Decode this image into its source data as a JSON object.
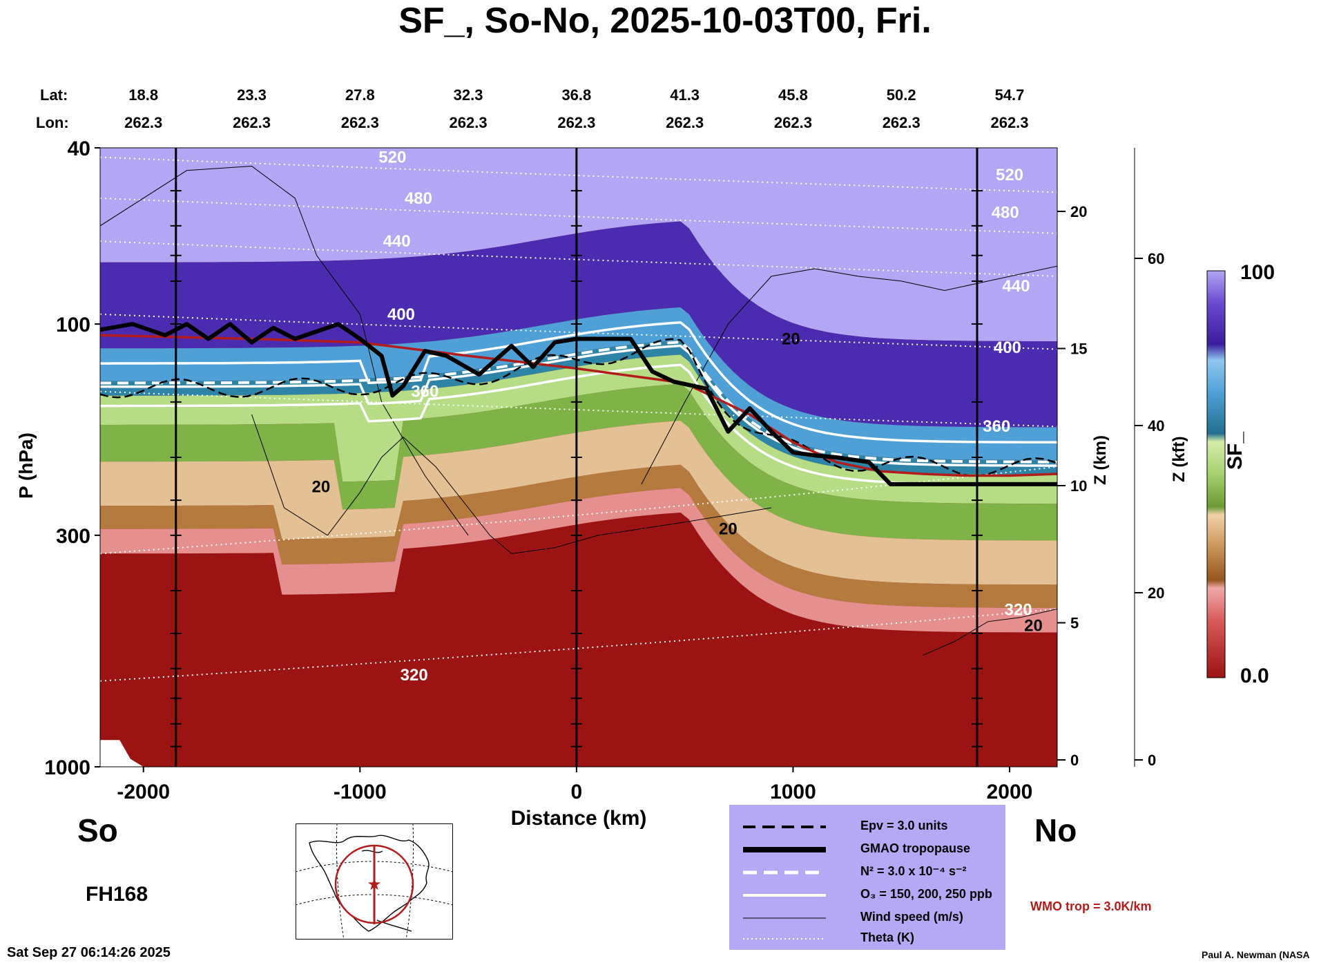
{
  "chart_data": {
    "type": "heatmap",
    "title": "SF_, So-No, 2025-10-03T00, Fri.",
    "xlabel": "Distance (km)",
    "ylabel": "P (hPa)",
    "xlim": [
      -2200,
      2220
    ],
    "ylim": [
      1000,
      40
    ],
    "x_ticks": [
      "-2000",
      "-1000",
      "0",
      "1000",
      "2000"
    ],
    "x_tick_values": [
      -2000,
      -1000,
      0,
      1000,
      2000
    ],
    "y_ticks": [
      "40",
      "100",
      "300",
      "1000"
    ],
    "y_tick_values": [
      40,
      100,
      300,
      1000
    ],
    "z_km_label": "Z (km)",
    "z_km_ticks": [
      "0",
      "5",
      "10",
      "15",
      "20"
    ],
    "z_km_values": [
      0,
      5,
      10,
      15,
      20
    ],
    "z_kft_label": "Z (kft)",
    "z_kft_ticks": [
      "0",
      "20",
      "40",
      "60"
    ],
    "z_kft_values": [
      0,
      20,
      40,
      60
    ],
    "colorbar": {
      "label": "SF_",
      "max_label": "100",
      "min_label": "0.0",
      "range": [
        0,
        100
      ]
    },
    "lat_label": "Lat:",
    "lon_label": "Lon:",
    "lat": [
      "18.8",
      "23.3",
      "27.8",
      "32.3",
      "36.8",
      "41.3",
      "45.8",
      "50.2",
      "54.7"
    ],
    "lon": [
      "262.3",
      "262.3",
      "262.3",
      "262.3",
      "262.3",
      "262.3",
      "262.3",
      "262.3",
      "262.3"
    ],
    "latlon_distances": [
      -2000,
      -1500,
      -1000,
      -500,
      0,
      500,
      1000,
      1500,
      2000
    ],
    "vertical_lines_km": [
      -1850,
      0,
      1850
    ],
    "theta_labels": [
      {
        "text": "520",
        "x": -850,
        "p": 42
      },
      {
        "text": "480",
        "x": -730,
        "p": 52
      },
      {
        "text": "440",
        "x": -830,
        "p": 65
      },
      {
        "text": "400",
        "x": -810,
        "p": 95
      },
      {
        "text": "360",
        "x": -700,
        "p": 142
      },
      {
        "text": "320",
        "x": -750,
        "p": 620
      },
      {
        "text": "520",
        "x": 2000,
        "p": 46
      },
      {
        "text": "480",
        "x": 1980,
        "p": 56
      },
      {
        "text": "440",
        "x": 2030,
        "p": 82
      },
      {
        "text": "400",
        "x": 1990,
        "p": 113
      },
      {
        "text": "360",
        "x": 1940,
        "p": 170
      },
      {
        "text": "320",
        "x": 2040,
        "p": 442
      }
    ],
    "wind_labels": [
      {
        "text": "20",
        "x": 990,
        "p": 108
      },
      {
        "text": "20",
        "x": -1180,
        "p": 233
      },
      {
        "text": "20",
        "x": 700,
        "p": 290
      },
      {
        "text": "20",
        "x": 2110,
        "p": 480
      }
    ],
    "gmao_tropopause": {
      "x": [
        -2200,
        -2050,
        -1900,
        -1800,
        -1700,
        -1600,
        -1500,
        -1400,
        -1300,
        -1100,
        -1000,
        -900,
        -850,
        -800,
        -700,
        -600,
        -450,
        -300,
        -200,
        -100,
        0,
        100,
        250,
        350,
        450,
        600,
        700,
        800,
        900,
        1000,
        1100,
        1200,
        1350,
        1450,
        1600,
        1800,
        2000,
        2220
      ],
      "p": [
        103,
        100,
        106,
        100,
        108,
        100,
        110,
        102,
        108,
        100,
        108,
        118,
        145,
        138,
        115,
        118,
        130,
        112,
        125,
        110,
        108,
        108,
        108,
        128,
        135,
        140,
        175,
        155,
        175,
        195,
        198,
        200,
        205,
        230,
        230,
        230,
        230,
        230
      ]
    },
    "wmo_tropopause": {
      "x": [
        -2200,
        -1500,
        -1000,
        -500,
        0,
        500,
        800,
        1000,
        1200,
        1400,
        1600,
        1800,
        2000,
        2220
      ],
      "p": [
        106,
        108,
        110,
        118,
        126,
        136,
        160,
        185,
        205,
        215,
        218,
        220,
        220,
        218
      ]
    },
    "legend": [
      {
        "text": "Epv = 3.0 units",
        "style": "dashed-black"
      },
      {
        "text": "GMAO tropopause",
        "style": "thick-black"
      },
      {
        "text": "N² = 3.0 x 10⁻⁴ s⁻²",
        "style": "dashed-white"
      },
      {
        "text": "O₃ = 150, 200, 250 ppb",
        "style": "solid-white"
      },
      {
        "text": "Wind speed (m/s)",
        "style": "thin-black"
      },
      {
        "text": "Theta (K)",
        "style": "dotted-white"
      }
    ],
    "wmo_note": "WMO trop = 3.0K/km",
    "south_label": "So",
    "north_label": "No",
    "forecast_hour": "FH168"
  },
  "colors": {
    "stratosphere_lavender": "#b3a6f4",
    "upper_purple": "#4b2bb0",
    "blue": "#4fa0d6",
    "teal": "#2d84a6",
    "light_green": "#b6dd86",
    "green": "#7fb247",
    "tan": "#e4c095",
    "brown": "#b57a3d",
    "pink": "#e58f8f",
    "red": "#9b1313",
    "wmo_red": "#b41c1c",
    "legend_bg": "#b5a8f5"
  },
  "timestamp": "Sat Sep 27 06:14:26 2025",
  "credit": "Paul A. Newman (NASA"
}
